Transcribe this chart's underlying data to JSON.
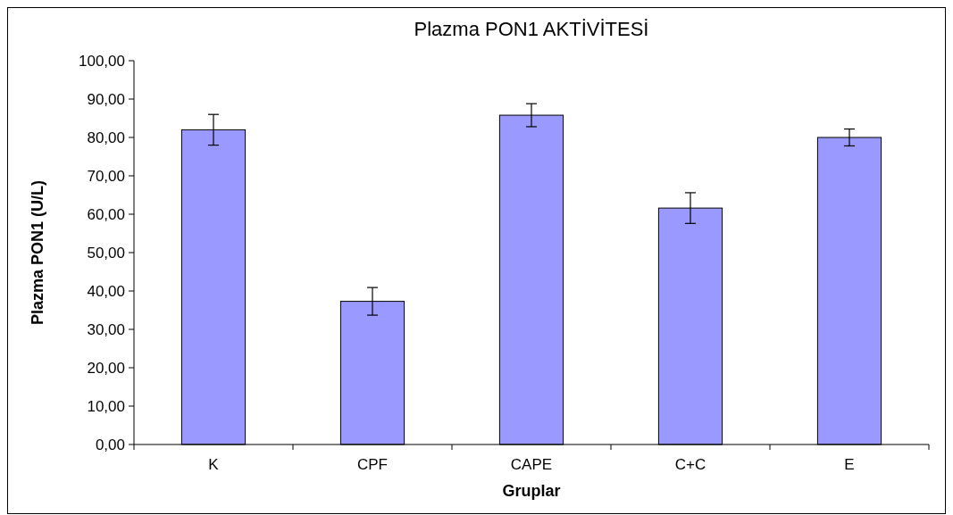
{
  "chart_data": {
    "type": "bar",
    "title": "Plazma PON1 AKTİVİTESİ",
    "xlabel": "Gruplar",
    "ylabel": "Plazma PON1 (U/L)",
    "categories": [
      "K",
      "CPF",
      "CAPE",
      "C+C",
      "E"
    ],
    "series": [
      {
        "color": "#9999ff",
        "values": [
          82.0,
          37.3,
          85.8,
          61.6,
          80.0
        ],
        "errors": [
          4.0,
          3.6,
          3.0,
          4.0,
          2.2
        ]
      }
    ],
    "ylim": [
      0,
      100
    ],
    "yticks": [
      {
        "value": 0,
        "label": "0,00"
      },
      {
        "value": 10,
        "label": "10,00"
      },
      {
        "value": 20,
        "label": "20,00"
      },
      {
        "value": 30,
        "label": "30,00"
      },
      {
        "value": 40,
        "label": "40,00"
      },
      {
        "value": 50,
        "label": "50,00"
      },
      {
        "value": 60,
        "label": "60,00"
      },
      {
        "value": 70,
        "label": "70,00"
      },
      {
        "value": 80,
        "label": "80,00"
      },
      {
        "value": 90,
        "label": "90,00"
      },
      {
        "value": 100,
        "label": "100,00"
      }
    ],
    "grid": false
  }
}
